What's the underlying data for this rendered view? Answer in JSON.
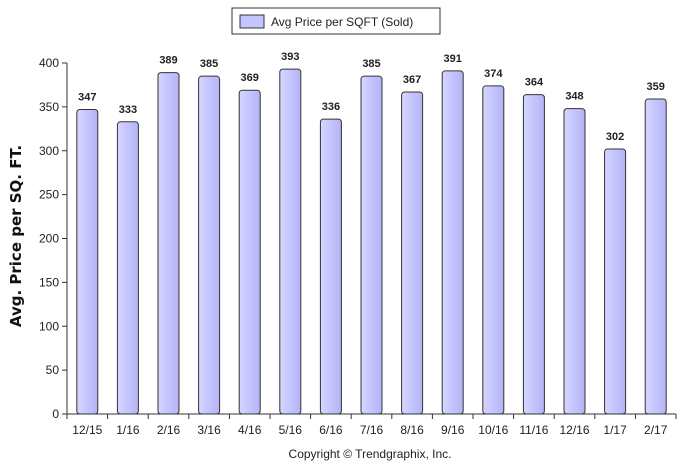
{
  "chart_data": {
    "type": "bar",
    "categories": [
      "12/15",
      "1/16",
      "2/16",
      "3/16",
      "4/16",
      "5/16",
      "6/16",
      "7/16",
      "8/16",
      "9/16",
      "10/16",
      "11/16",
      "12/16",
      "1/17",
      "2/17"
    ],
    "series": [
      {
        "name": "Avg Price per SQFT (Sold)",
        "values": [
          347,
          333,
          389,
          385,
          369,
          393,
          336,
          385,
          367,
          391,
          374,
          364,
          348,
          302,
          359
        ]
      }
    ],
    "ylabel": "Avg. Price per SQ. FT.",
    "xlabel": "",
    "ylim": [
      0,
      400
    ],
    "yticks": [
      0,
      50,
      100,
      150,
      200,
      250,
      300,
      350,
      400
    ],
    "grid": false,
    "legend_position": "top-center",
    "colors": {
      "bar_fill": "#c4c4ff",
      "bar_stroke": "#333333"
    }
  },
  "copyright": "Copyright © Trendgraphix, Inc."
}
